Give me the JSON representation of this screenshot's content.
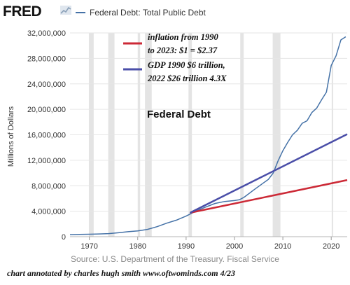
{
  "header": {
    "logo_text": "FRED",
    "logo_icon": "line-chart-icon",
    "series_label": "Federal Debt: Total Public Debt"
  },
  "colors": {
    "series": "#4572a7",
    "inflation_line": "#cc2936",
    "gdp_line": "#4a4ea8",
    "recession_band": "#e4e4e4",
    "grid": "#e6e6e6"
  },
  "chart_data": {
    "type": "line",
    "title": "Federal Debt",
    "ylabel": "Millions of Dollars",
    "source": "Source: U.S. Department of the Treasury. Fiscal Service",
    "xlim": [
      1966,
      2023.3
    ],
    "ylim": [
      0,
      32000000
    ],
    "x_ticks": [
      1970,
      1980,
      1990,
      2000,
      2010,
      2020
    ],
    "y_ticks": [
      0,
      4000000,
      8000000,
      12000000,
      16000000,
      20000000,
      24000000,
      28000000,
      32000000
    ],
    "y_tick_labels": [
      "0",
      "4,000,000",
      "8,000,000",
      "12,000,000",
      "16,000,000",
      "20,000,000",
      "24,000,000",
      "28,000,000",
      "32,000,000"
    ],
    "recessions": [
      [
        1969.9,
        1970.9
      ],
      [
        1973.9,
        1975.2
      ],
      [
        1980.0,
        1980.5
      ],
      [
        1981.5,
        1982.9
      ],
      [
        1990.5,
        1991.2
      ],
      [
        2001.2,
        2001.9
      ],
      [
        2007.9,
        2009.5
      ],
      [
        2020.1,
        2020.4
      ]
    ],
    "series": [
      {
        "name": "Federal Debt: Total Public Debt",
        "points": [
          [
            1966,
            320000
          ],
          [
            1968,
            350000
          ],
          [
            1970,
            380000
          ],
          [
            1972,
            430000
          ],
          [
            1974,
            480000
          ],
          [
            1976,
            620000
          ],
          [
            1978,
            780000
          ],
          [
            1980,
            910000
          ],
          [
            1982,
            1140000
          ],
          [
            1984,
            1570000
          ],
          [
            1986,
            2120000
          ],
          [
            1988,
            2600000
          ],
          [
            1990,
            3230000
          ],
          [
            1992,
            4000000
          ],
          [
            1994,
            4640000
          ],
          [
            1996,
            5220000
          ],
          [
            1998,
            5530000
          ],
          [
            2000,
            5670000
          ],
          [
            2001,
            5800000
          ],
          [
            2002,
            6200000
          ],
          [
            2004,
            7350000
          ],
          [
            2006,
            8450000
          ],
          [
            2007,
            9000000
          ],
          [
            2008,
            10000000
          ],
          [
            2009,
            11900000
          ],
          [
            2010,
            13500000
          ],
          [
            2011,
            14800000
          ],
          [
            2012,
            16000000
          ],
          [
            2013,
            16700000
          ],
          [
            2014,
            17800000
          ],
          [
            2015,
            18200000
          ],
          [
            2016,
            19500000
          ],
          [
            2017,
            20200000
          ],
          [
            2018,
            21500000
          ],
          [
            2019,
            22700000
          ],
          [
            2020,
            26900000
          ],
          [
            2021,
            28400000
          ],
          [
            2022,
            30900000
          ],
          [
            2023,
            31400000
          ]
        ]
      },
      {
        "name": "inflation",
        "points": [
          [
            1990.8,
            3750000
          ],
          [
            2023.3,
            8900000
          ]
        ]
      },
      {
        "name": "GDP",
        "points": [
          [
            1990.8,
            3750000
          ],
          [
            2023.3,
            16100000
          ]
        ]
      }
    ],
    "annotations": {
      "inflation_text_1": "inflation from 1990",
      "inflation_text_2": "to 2023: $1 = $2.37",
      "gdp_text_1": "GDP 1990 $6 trillion,",
      "gdp_text_2": "2022 $26 trillion 4.3X"
    }
  },
  "footer": "chart annotated by charles hugh smith   www.oftwominds.com  4/23"
}
